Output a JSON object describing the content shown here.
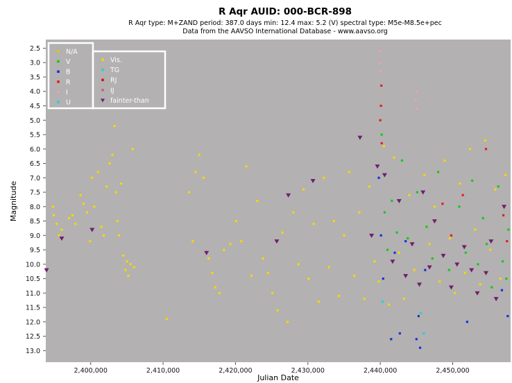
{
  "chart_data": {
    "type": "scatter",
    "title": "R Aqr   AUID: 000-BCR-898",
    "subtitle": "R Aqr   type: M+ZAND   period: 387.0 days   min: 12.4   max: 5.2 (V)   spectral type: M5e-M8.5e+pec",
    "source_line": "Data from the AAVSO International Database - www.aavso.org",
    "xlabel": "Julian Date",
    "ylabel": "Magnitude",
    "xlim": [
      2393800,
      2458000
    ],
    "ylim": [
      2.2,
      13.4
    ],
    "y_inverted": true,
    "grid": false,
    "background": "#b3b1b2",
    "x_ticks": [
      {
        "value": 2400000,
        "label": "2,400,000"
      },
      {
        "value": 2410000,
        "label": "2,410,000"
      },
      {
        "value": 2420000,
        "label": "2,420,000"
      },
      {
        "value": 2430000,
        "label": "2,430,000"
      },
      {
        "value": 2440000,
        "label": "2,440,000"
      },
      {
        "value": 2450000,
        "label": "2,450,000"
      }
    ],
    "y_ticks": [
      {
        "value": 2.5,
        "label": "2.5"
      },
      {
        "value": 3.0,
        "label": "3.0"
      },
      {
        "value": 3.5,
        "label": "3.5"
      },
      {
        "value": 4.0,
        "label": "4.0"
      },
      {
        "value": 4.5,
        "label": "4.5"
      },
      {
        "value": 5.0,
        "label": "5.0"
      },
      {
        "value": 5.5,
        "label": "5.5"
      },
      {
        "value": 6.0,
        "label": "6.0"
      },
      {
        "value": 6.5,
        "label": "6.5"
      },
      {
        "value": 7.0,
        "label": "7.0"
      },
      {
        "value": 7.5,
        "label": "7.5"
      },
      {
        "value": 8.0,
        "label": "8.0"
      },
      {
        "value": 8.5,
        "label": "8.5"
      },
      {
        "value": 9.0,
        "label": "9.0"
      },
      {
        "value": 9.5,
        "label": "9.5"
      },
      {
        "value": 10.0,
        "label": "10.0"
      },
      {
        "value": 10.5,
        "label": "10.5"
      },
      {
        "value": 11.0,
        "label": "11.0"
      },
      {
        "value": 11.5,
        "label": "11.5"
      },
      {
        "value": 12.0,
        "label": "12.0"
      },
      {
        "value": 12.5,
        "label": "12.5"
      },
      {
        "value": 13.0,
        "label": "13.0"
      }
    ],
    "legend": {
      "placement": "top-left",
      "groups": [
        [
          {
            "label": "N/A",
            "color": "#e0c800",
            "marker": "square"
          },
          {
            "label": "V",
            "color": "#19c819",
            "marker": "square"
          },
          {
            "label": "B",
            "color": "#1432dc",
            "marker": "square"
          },
          {
            "label": "R",
            "color": "#e61e1e",
            "marker": "square"
          },
          {
            "label": "I",
            "color": "#f0a0a8",
            "marker": "square"
          },
          {
            "label": "U",
            "color": "#28c8e6",
            "marker": "square"
          }
        ],
        [
          {
            "label": "Vis.",
            "color": "#f5d800",
            "marker": "square"
          },
          {
            "label": "TG",
            "color": "#28d0d0",
            "marker": "square"
          },
          {
            "label": "RJ",
            "color": "#d81414",
            "marker": "square"
          },
          {
            "label": "IJ",
            "color": "#c86482",
            "marker": "square"
          },
          {
            "label": "fainter-than",
            "color": "#6e1e6e",
            "marker": "triangle-down"
          }
        ]
      ]
    },
    "series": [
      {
        "name": "Vis.",
        "color": "#f5d800",
        "points": [
          [
            2394800,
            8.0
          ],
          [
            2394900,
            8.3
          ],
          [
            2395300,
            8.6
          ],
          [
            2395600,
            9.0
          ],
          [
            2396000,
            8.8
          ],
          [
            2397000,
            8.4
          ],
          [
            2397500,
            8.3
          ],
          [
            2397900,
            8.6
          ],
          [
            2398600,
            7.6
          ],
          [
            2399000,
            7.9
          ],
          [
            2399500,
            8.2
          ],
          [
            2399900,
            9.2
          ],
          [
            2400200,
            7.0
          ],
          [
            2400500,
            8.0
          ],
          [
            2401000,
            6.8
          ],
          [
            2401500,
            8.7
          ],
          [
            2401800,
            9.0
          ],
          [
            2402200,
            7.3
          ],
          [
            2402600,
            6.5
          ],
          [
            2403000,
            6.2
          ],
          [
            2403300,
            5.2
          ],
          [
            2403500,
            7.5
          ],
          [
            2403700,
            8.5
          ],
          [
            2403900,
            9.0
          ],
          [
            2404200,
            7.2
          ],
          [
            2404500,
            9.7
          ],
          [
            2404800,
            10.2
          ],
          [
            2405000,
            9.9
          ],
          [
            2405200,
            10.4
          ],
          [
            2405500,
            10.0
          ],
          [
            2405800,
            6.0
          ],
          [
            2406000,
            10.1
          ],
          [
            2410500,
            11.9
          ],
          [
            2413600,
            7.5
          ],
          [
            2414100,
            9.2
          ],
          [
            2414500,
            6.8
          ],
          [
            2415000,
            6.2
          ],
          [
            2415600,
            7.0
          ],
          [
            2416300,
            9.8
          ],
          [
            2416800,
            10.3
          ],
          [
            2417200,
            10.8
          ],
          [
            2417800,
            11.0
          ],
          [
            2418400,
            9.5
          ],
          [
            2419300,
            9.3
          ],
          [
            2420100,
            8.5
          ],
          [
            2420800,
            9.2
          ],
          [
            2421500,
            6.6
          ],
          [
            2422200,
            10.4
          ],
          [
            2423000,
            7.8
          ],
          [
            2423800,
            9.8
          ],
          [
            2424500,
            10.3
          ],
          [
            2425100,
            11.0
          ],
          [
            2425800,
            11.6
          ],
          [
            2426500,
            8.9
          ],
          [
            2427200,
            12.0
          ],
          [
            2428000,
            8.2
          ],
          [
            2428700,
            10.0
          ],
          [
            2429400,
            7.4
          ],
          [
            2430100,
            10.5
          ],
          [
            2430800,
            8.6
          ],
          [
            2431500,
            11.3
          ],
          [
            2432200,
            7.0
          ],
          [
            2432900,
            10.1
          ],
          [
            2433600,
            8.5
          ],
          [
            2434300,
            11.1
          ],
          [
            2435000,
            9.0
          ],
          [
            2435700,
            6.8
          ],
          [
            2436400,
            10.4
          ],
          [
            2437100,
            8.2
          ],
          [
            2437800,
            11.2
          ],
          [
            2438500,
            7.3
          ],
          [
            2439200,
            9.9
          ],
          [
            2439800,
            10.6
          ],
          [
            2440500,
            5.9
          ],
          [
            2441200,
            11.4
          ],
          [
            2441900,
            6.3
          ],
          [
            2442600,
            9.6
          ],
          [
            2443300,
            11.2
          ],
          [
            2444000,
            7.6
          ],
          [
            2444700,
            10.2
          ],
          [
            2445400,
            11.8
          ],
          [
            2446100,
            6.9
          ],
          [
            2446800,
            9.3
          ],
          [
            2447500,
            8.0
          ],
          [
            2448200,
            10.6
          ],
          [
            2448900,
            6.4
          ],
          [
            2449600,
            9.1
          ],
          [
            2450300,
            11.0
          ],
          [
            2451000,
            7.2
          ],
          [
            2451700,
            10.3
          ],
          [
            2452400,
            6.0
          ],
          [
            2453100,
            8.8
          ],
          [
            2453800,
            10.7
          ],
          [
            2454500,
            5.7
          ],
          [
            2455200,
            9.5
          ],
          [
            2455900,
            7.4
          ],
          [
            2456600,
            10.5
          ],
          [
            2457300,
            6.9
          ]
        ]
      },
      {
        "name": "V",
        "color": "#19c819",
        "points": [
          [
            2440200,
            5.5
          ],
          [
            2440600,
            8.2
          ],
          [
            2441000,
            9.5
          ],
          [
            2441600,
            7.8
          ],
          [
            2442300,
            8.9
          ],
          [
            2443000,
            6.4
          ],
          [
            2443800,
            9.1
          ],
          [
            2445100,
            7.5
          ],
          [
            2446400,
            8.7
          ],
          [
            2447200,
            9.8
          ],
          [
            2448000,
            6.8
          ],
          [
            2449500,
            10.2
          ],
          [
            2450900,
            8.0
          ],
          [
            2451800,
            9.6
          ],
          [
            2452700,
            7.1
          ],
          [
            2453500,
            10.0
          ],
          [
            2454200,
            8.4
          ],
          [
            2454700,
            9.3
          ],
          [
            2455400,
            10.8
          ],
          [
            2456300,
            7.3
          ],
          [
            2456900,
            9.9
          ],
          [
            2457400,
            10.5
          ],
          [
            2457700,
            8.8
          ]
        ]
      },
      {
        "name": "B",
        "color": "#1432dc",
        "points": [
          [
            2439800,
            7.0
          ],
          [
            2440100,
            9.0
          ],
          [
            2440400,
            10.5
          ],
          [
            2441500,
            12.6
          ],
          [
            2442000,
            9.6
          ],
          [
            2442700,
            12.4
          ],
          [
            2443500,
            9.2
          ],
          [
            2445000,
            12.6
          ],
          [
            2445300,
            11.8
          ],
          [
            2445500,
            12.9
          ],
          [
            2446200,
            10.2
          ],
          [
            2452000,
            12.0
          ],
          [
            2456800,
            10.9
          ],
          [
            2457600,
            11.8
          ]
        ]
      },
      {
        "name": "R",
        "color": "#e61e1e",
        "points": [
          [
            2440000,
            5.0
          ],
          [
            2440100,
            4.5
          ],
          [
            2440150,
            3.8
          ],
          [
            2440200,
            5.8
          ],
          [
            2448600,
            7.9
          ],
          [
            2449800,
            9.0
          ],
          [
            2451400,
            7.6
          ],
          [
            2454600,
            6.0
          ],
          [
            2457000,
            8.3
          ],
          [
            2457500,
            9.2
          ]
        ]
      },
      {
        "name": "I",
        "color": "#f0a0a8",
        "points": [
          [
            2439900,
            2.6
          ],
          [
            2440000,
            3.0
          ],
          [
            2440050,
            3.3
          ],
          [
            2445000,
            4.0
          ],
          [
            2444900,
            4.3
          ],
          [
            2445050,
            4.6
          ]
        ]
      },
      {
        "name": "TG",
        "color": "#28d0d0",
        "points": [
          [
            2440300,
            11.3
          ],
          [
            2445600,
            11.7
          ],
          [
            2446000,
            12.4
          ]
        ]
      },
      {
        "name": "fainter-than",
        "color": "#6e1e6e",
        "points": [
          [
            2393900,
            10.2
          ],
          [
            2396000,
            9.1
          ],
          [
            2400200,
            8.8
          ],
          [
            2416000,
            9.6
          ],
          [
            2425700,
            9.2
          ],
          [
            2427300,
            7.6
          ],
          [
            2430700,
            7.1
          ],
          [
            2437200,
            5.6
          ],
          [
            2438800,
            9.0
          ],
          [
            2439600,
            6.6
          ],
          [
            2440600,
            6.9
          ],
          [
            2441700,
            9.9
          ],
          [
            2442600,
            7.8
          ],
          [
            2443500,
            10.4
          ],
          [
            2444400,
            9.3
          ],
          [
            2445400,
            10.7
          ],
          [
            2445900,
            7.5
          ],
          [
            2446800,
            10.1
          ],
          [
            2447500,
            8.5
          ],
          [
            2448700,
            9.7
          ],
          [
            2449800,
            10.8
          ],
          [
            2450600,
            10.0
          ],
          [
            2451600,
            9.4
          ],
          [
            2452600,
            10.2
          ],
          [
            2453400,
            11.0
          ],
          [
            2454600,
            10.3
          ],
          [
            2455300,
            9.2
          ],
          [
            2456000,
            11.2
          ],
          [
            2457100,
            8.0
          ]
        ]
      }
    ]
  }
}
